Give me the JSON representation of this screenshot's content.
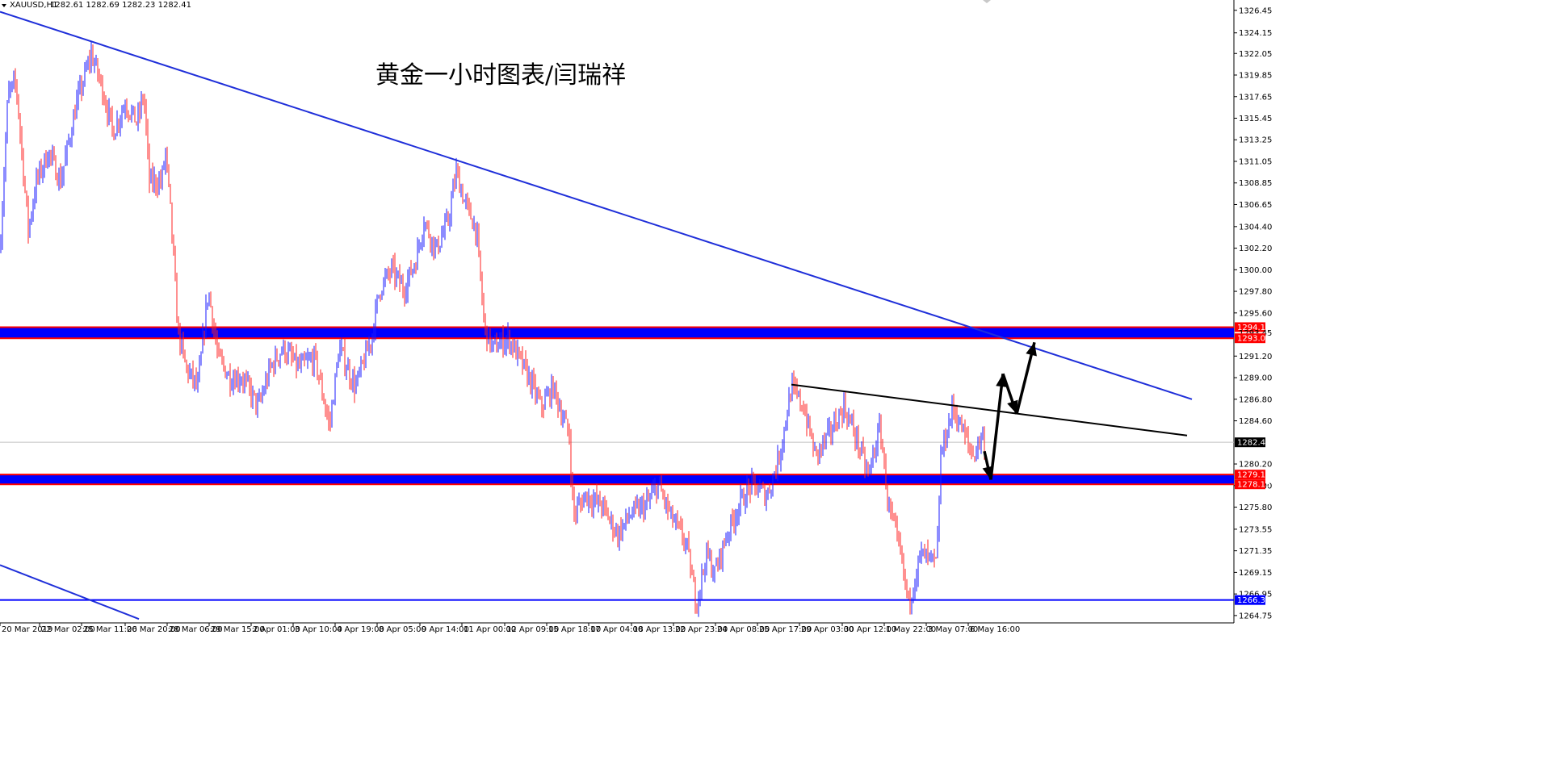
{
  "symbol_info": {
    "symbol": "XAUUSD,H1",
    "ohlc": "1282.61 1282.69 1282.23 1282.41"
  },
  "annotation_title": "黄金一小时图表/闫瑞祥",
  "colors": {
    "bull": "#1a1aff",
    "bear": "#ff2222",
    "zone_fill": "#0000ff",
    "zone_border": "#ff0000",
    "trendline": "#1f2fd9",
    "resistance_line": "#000000",
    "arrow": "#000000",
    "axis": "#000000",
    "price_line": "#c0c0c0",
    "bid_tag": "#000000",
    "zone_tag": "#ff0000",
    "support_tag": "#0000ff"
  },
  "chart_data": {
    "type": "candlestick",
    "x_labels": [
      "20 Mar 2019",
      "22 Mar 02:00",
      "25 Mar 11:00",
      "26 Mar 20:00",
      "28 Mar 06:00",
      "29 Mar 15:00",
      "2 Apr 01:00",
      "3 Apr 10:00",
      "4 Apr 19:00",
      "8 Apr 05:00",
      "9 Apr 14:00",
      "11 Apr 00:00",
      "12 Apr 09:00",
      "15 Apr 18:00",
      "17 Apr 04:00",
      "18 Apr 13:00",
      "22 Apr 23:00",
      "24 Apr 08:00",
      "25 Apr 17:00",
      "29 Apr 03:00",
      "30 Apr 12:00",
      "1 May 22:00",
      "3 May 07:00",
      "6 May 16:00"
    ],
    "y_ticks": [
      "1326.45",
      "1324.15",
      "1322.05",
      "1319.85",
      "1317.65",
      "1315.45",
      "1313.25",
      "1311.05",
      "1308.85",
      "1306.65",
      "1304.40",
      "1302.20",
      "1300.00",
      "1297.80",
      "1295.60",
      "1291.20",
      "1289.00",
      "1286.80",
      "1284.60",
      "1280.20",
      "1278.00",
      "1275.80",
      "1273.55",
      "1271.35",
      "1269.15",
      "1266.95",
      "1264.75"
    ],
    "ylim": [
      1264.0,
      1327.5
    ],
    "price_path": [
      [
        0,
        1302
      ],
      [
        10,
        1318
      ],
      [
        20,
        1319
      ],
      [
        35,
        1304
      ],
      [
        45,
        1309
      ],
      [
        60,
        1312
      ],
      [
        75,
        1309
      ],
      [
        95,
        1317
      ],
      [
        113,
        1322
      ],
      [
        125,
        1319
      ],
      [
        140,
        1314
      ],
      [
        155,
        1317
      ],
      [
        170,
        1315
      ],
      [
        178,
        1318
      ],
      [
        185,
        1309
      ],
      [
        200,
        1309
      ],
      [
        205,
        1312
      ],
      [
        212,
        1305
      ],
      [
        220,
        1294
      ],
      [
        230,
        1290
      ],
      [
        245,
        1288
      ],
      [
        258,
        1298
      ],
      [
        270,
        1291
      ],
      [
        285,
        1289
      ],
      [
        300,
        1289
      ],
      [
        320,
        1286
      ],
      [
        335,
        1290
      ],
      [
        350,
        1292
      ],
      [
        370,
        1290
      ],
      [
        390,
        1291
      ],
      [
        408,
        1284
      ],
      [
        420,
        1292
      ],
      [
        440,
        1288
      ],
      [
        460,
        1293
      ],
      [
        470,
        1298
      ],
      [
        485,
        1300
      ],
      [
        500,
        1298
      ],
      [
        515,
        1301
      ],
      [
        525,
        1305
      ],
      [
        540,
        1302
      ],
      [
        555,
        1305
      ],
      [
        565,
        1310
      ],
      [
        575,
        1307
      ],
      [
        590,
        1304
      ],
      [
        600,
        1294
      ],
      [
        610,
        1292
      ],
      [
        630,
        1293
      ],
      [
        655,
        1289
      ],
      [
        670,
        1286
      ],
      [
        685,
        1288
      ],
      [
        705,
        1283
      ],
      [
        710,
        1275
      ],
      [
        725,
        1277
      ],
      [
        745,
        1276
      ],
      [
        765,
        1273
      ],
      [
        780,
        1275
      ],
      [
        800,
        1276
      ],
      [
        815,
        1278
      ],
      [
        830,
        1275
      ],
      [
        850,
        1272
      ],
      [
        862,
        1266
      ],
      [
        875,
        1271
      ],
      [
        885,
        1269
      ],
      [
        900,
        1273
      ],
      [
        915,
        1276
      ],
      [
        930,
        1278
      ],
      [
        950,
        1277
      ],
      [
        965,
        1281
      ],
      [
        980,
        1288
      ],
      [
        995,
        1286
      ],
      [
        1010,
        1281
      ],
      [
        1025,
        1283
      ],
      [
        1045,
        1286
      ],
      [
        1060,
        1283
      ],
      [
        1075,
        1279
      ],
      [
        1090,
        1284
      ],
      [
        1100,
        1276
      ],
      [
        1115,
        1271
      ],
      [
        1125,
        1266
      ],
      [
        1140,
        1271
      ],
      [
        1160,
        1270
      ],
      [
        1165,
        1281
      ],
      [
        1180,
        1286
      ],
      [
        1195,
        1283
      ],
      [
        1205,
        1281
      ],
      [
        1215,
        1283
      ],
      [
        1219,
        1282.41
      ]
    ],
    "levels": {
      "upper_zone": {
        "top": 1294.15,
        "bottom": 1293.02,
        "label_top": "1294.15",
        "label_mid": "1293.45",
        "label_bottom": "1293.02"
      },
      "lower_zone": {
        "top": 1279.12,
        "bottom": 1278.13,
        "label_top": "1279.12",
        "label_bottom": "1278.13"
      },
      "support_line": {
        "value": 1266.33,
        "label": "1266.33"
      },
      "current_price": {
        "value": 1282.41,
        "label": "1282.41"
      }
    },
    "trendlines": [
      {
        "name": "main-downtrend",
        "from": [
          0,
          1326.3
        ],
        "to": [
          1476,
          1286.8
        ]
      },
      {
        "name": "lower-downtrend",
        "from": [
          0,
          1269.9
        ],
        "to": [
          172,
          1264.4
        ]
      },
      {
        "name": "resistance",
        "from": [
          980,
          1288.3
        ],
        "to": [
          1470,
          1283.1
        ]
      }
    ],
    "forecast_path": [
      [
        1219,
        1281.5
      ],
      [
        1227,
        1278.6
      ],
      [
        1242,
        1289.4
      ],
      [
        1259,
        1285.3
      ],
      [
        1281,
        1292.6
      ]
    ]
  }
}
